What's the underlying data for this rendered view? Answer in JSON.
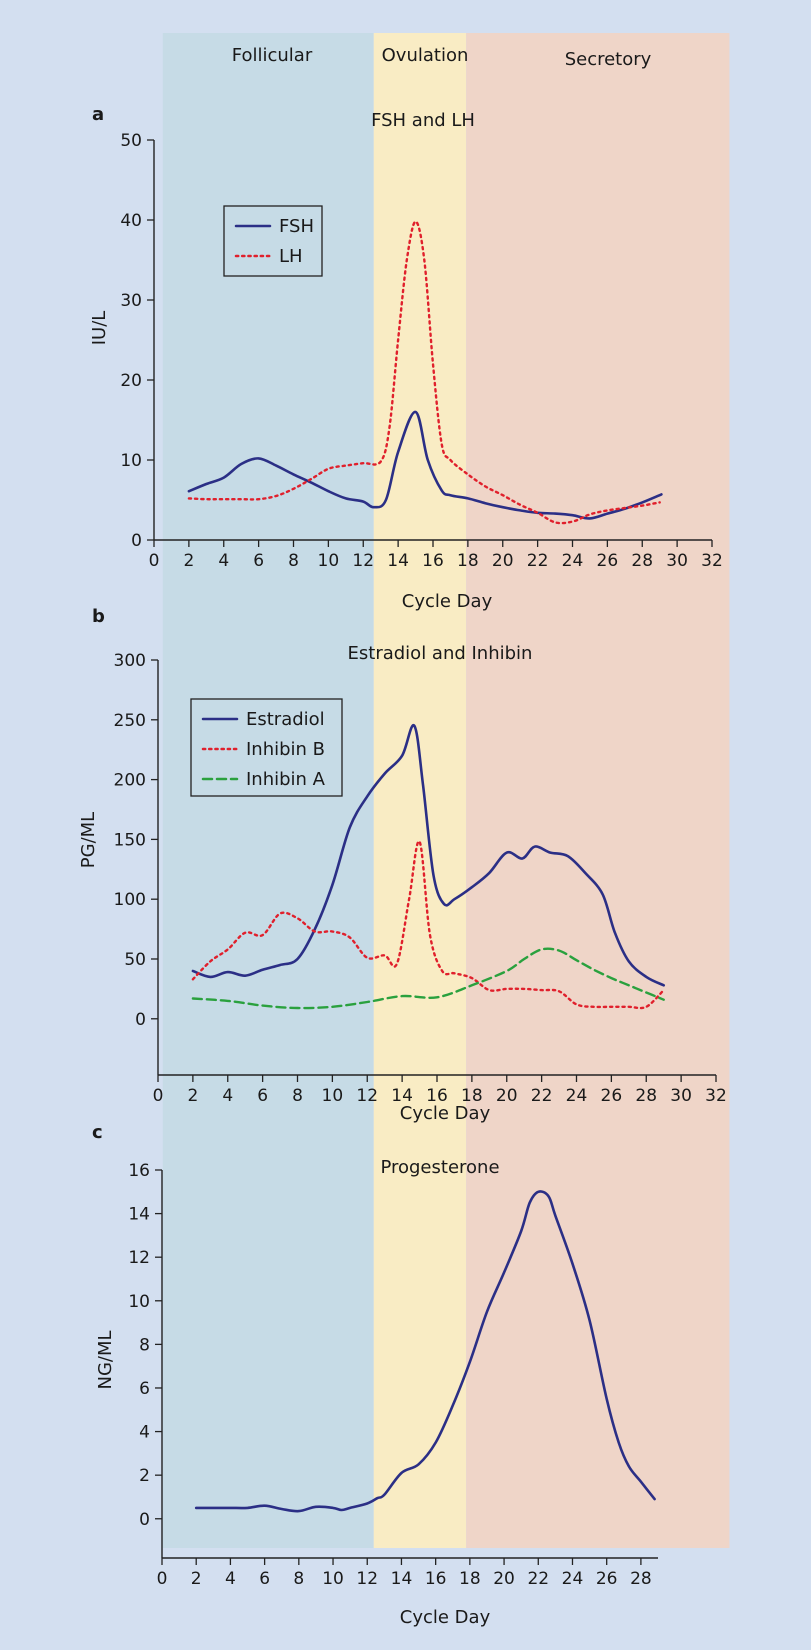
{
  "phases": [
    {
      "label": "Follicular",
      "from": 0.5,
      "to": 12.6,
      "color": "#c6dbe6"
    },
    {
      "label": "Ovulation",
      "from": 12.6,
      "to": 17.9,
      "color": "#f9ecc4"
    },
    {
      "label": "Secretory",
      "from": 17.9,
      "to": 33.0,
      "color": "#efd5c8"
    }
  ],
  "colors": {
    "navy": "#2b2f86",
    "red": "#e0202c",
    "green": "#2aa13e"
  },
  "chart_data": [
    {
      "panel": "a",
      "type": "line",
      "title": "FSH and LH",
      "xlabel": "Cycle Day",
      "ylabel": "IU/L",
      "xlim": [
        0,
        32
      ],
      "ylim": [
        0,
        50
      ],
      "xticks": [
        0,
        2,
        4,
        6,
        8,
        10,
        12,
        14,
        16,
        18,
        20,
        22,
        24,
        26,
        28,
        30,
        32
      ],
      "yticks": [
        0,
        10,
        20,
        30,
        40,
        50
      ],
      "legend": "top-left",
      "series": [
        {
          "name": "FSH",
          "style": "solid",
          "color": "#2b2f86",
          "x": [
            2,
            3,
            4,
            5,
            6,
            7,
            8,
            9,
            10,
            11,
            12,
            12.6,
            13.3,
            14,
            15,
            15.7,
            16.5,
            17,
            18,
            19,
            20,
            21,
            22,
            23,
            24,
            25,
            26,
            27,
            28,
            29.1
          ],
          "y": [
            6.1,
            7,
            7.8,
            9.5,
            10.2,
            9.3,
            8.2,
            7.2,
            6.1,
            5.2,
            4.8,
            4.1,
            5,
            11,
            16,
            10,
            6.2,
            5.6,
            5.2,
            4.6,
            4.1,
            3.7,
            3.4,
            3.3,
            3.1,
            2.7,
            3.3,
            3.9,
            4.7,
            5.7
          ]
        },
        {
          "name": "LH",
          "style": "dotted",
          "color": "#e0202c",
          "x": [
            2,
            3,
            4,
            5,
            6,
            7,
            8,
            9,
            10,
            11,
            12,
            13,
            13.5,
            14,
            14.5,
            15,
            15.5,
            16,
            16.5,
            17,
            18,
            19,
            20,
            21,
            22,
            23,
            24,
            25,
            26,
            27,
            28,
            29
          ],
          "y": [
            5.2,
            5.1,
            5.1,
            5.1,
            5.1,
            5.5,
            6.4,
            7.6,
            8.9,
            9.3,
            9.6,
            9.8,
            14,
            25,
            35,
            39.8,
            35,
            22,
            12,
            10,
            8.2,
            6.7,
            5.6,
            4.4,
            3.4,
            2.2,
            2.3,
            3.2,
            3.7,
            4.0,
            4.3,
            4.7
          ]
        }
      ]
    },
    {
      "panel": "b",
      "type": "line",
      "title": "Estradiol and Inhibin",
      "xlabel": "Cycle Day",
      "ylabel": "PG/ML",
      "xlim": [
        0,
        32
      ],
      "ylim": [
        -47,
        300
      ],
      "xticks": [
        0,
        2,
        4,
        6,
        8,
        10,
        12,
        14,
        16,
        18,
        20,
        22,
        24,
        26,
        28,
        30,
        32
      ],
      "yticks": [
        0,
        50,
        100,
        150,
        200,
        250,
        300
      ],
      "legend": "top-left",
      "series": [
        {
          "name": "Estradiol",
          "style": "solid",
          "color": "#2b2f86",
          "x": [
            2,
            3,
            4,
            5,
            6,
            7,
            8,
            9,
            10,
            11,
            12,
            13,
            14,
            14.7,
            15.2,
            15.8,
            16.4,
            17,
            18,
            19,
            20,
            20.9,
            21.6,
            22.5,
            23.5,
            24.5,
            25.5,
            26.2,
            27,
            28,
            29
          ],
          "y": [
            40,
            35,
            39,
            36,
            41,
            45,
            50,
            75,
            112,
            160,
            186,
            205,
            220,
            245,
            195,
            120,
            96,
            100,
            110,
            122,
            139,
            134,
            144,
            139,
            136,
            122,
            104,
            72,
            48,
            35,
            28
          ]
        },
        {
          "name": "Inhibin B",
          "style": "dotted",
          "color": "#e0202c",
          "x": [
            2,
            3,
            4,
            5,
            6,
            7,
            8,
            9,
            10,
            11,
            12,
            13,
            13.7,
            14.4,
            15,
            15.6,
            16.3,
            17,
            18,
            19,
            20,
            21,
            22,
            23,
            24,
            25,
            26,
            27,
            28,
            29
          ],
          "y": [
            33,
            48,
            58,
            72,
            70,
            88,
            84,
            73,
            73,
            68,
            51,
            53,
            46,
            100,
            148,
            70,
            40,
            38,
            34,
            24,
            25,
            25,
            24,
            23,
            12,
            10,
            10,
            10,
            10,
            24
          ]
        },
        {
          "name": "Inhibin A",
          "style": "dashed",
          "color": "#2aa13e",
          "x": [
            2,
            4,
            6,
            8,
            10,
            12,
            14,
            16,
            18,
            20,
            21,
            22,
            23,
            24,
            25,
            26,
            27,
            28,
            29
          ],
          "y": [
            17,
            15,
            11,
            9,
            10,
            14,
            19,
            18,
            28,
            40,
            50,
            58,
            57,
            49,
            41,
            34,
            28,
            22,
            16
          ]
        }
      ]
    },
    {
      "panel": "c",
      "type": "line",
      "title": "Progesterone",
      "xlabel": "Cycle Day",
      "ylabel": "NG/ML",
      "xlim": [
        0,
        29
      ],
      "ylim": [
        -1.8,
        16
      ],
      "xticks": [
        0,
        2,
        4,
        6,
        8,
        10,
        12,
        14,
        16,
        18,
        20,
        22,
        24,
        26,
        28
      ],
      "yticks": [
        0,
        2,
        4,
        6,
        8,
        10,
        12,
        14,
        16
      ],
      "series": [
        {
          "name": "",
          "style": "solid",
          "color": "#2b2f86",
          "x": [
            2,
            3,
            4,
            5,
            6,
            7,
            8,
            9,
            10,
            10.5,
            11,
            12,
            12.6,
            13,
            14,
            15,
            16,
            17,
            18,
            19,
            20,
            21,
            21.5,
            22,
            22.6,
            23,
            24,
            25,
            26,
            26.7,
            27.3,
            28,
            28.8
          ],
          "y": [
            0.5,
            0.5,
            0.5,
            0.5,
            0.6,
            0.45,
            0.35,
            0.55,
            0.5,
            0.4,
            0.5,
            0.7,
            0.95,
            1.1,
            2.1,
            2.5,
            3.5,
            5.2,
            7.2,
            9.5,
            11.3,
            13.2,
            14.5,
            15.0,
            14.8,
            13.9,
            11.7,
            9.1,
            5.5,
            3.5,
            2.4,
            1.7,
            0.9
          ]
        }
      ]
    }
  ]
}
